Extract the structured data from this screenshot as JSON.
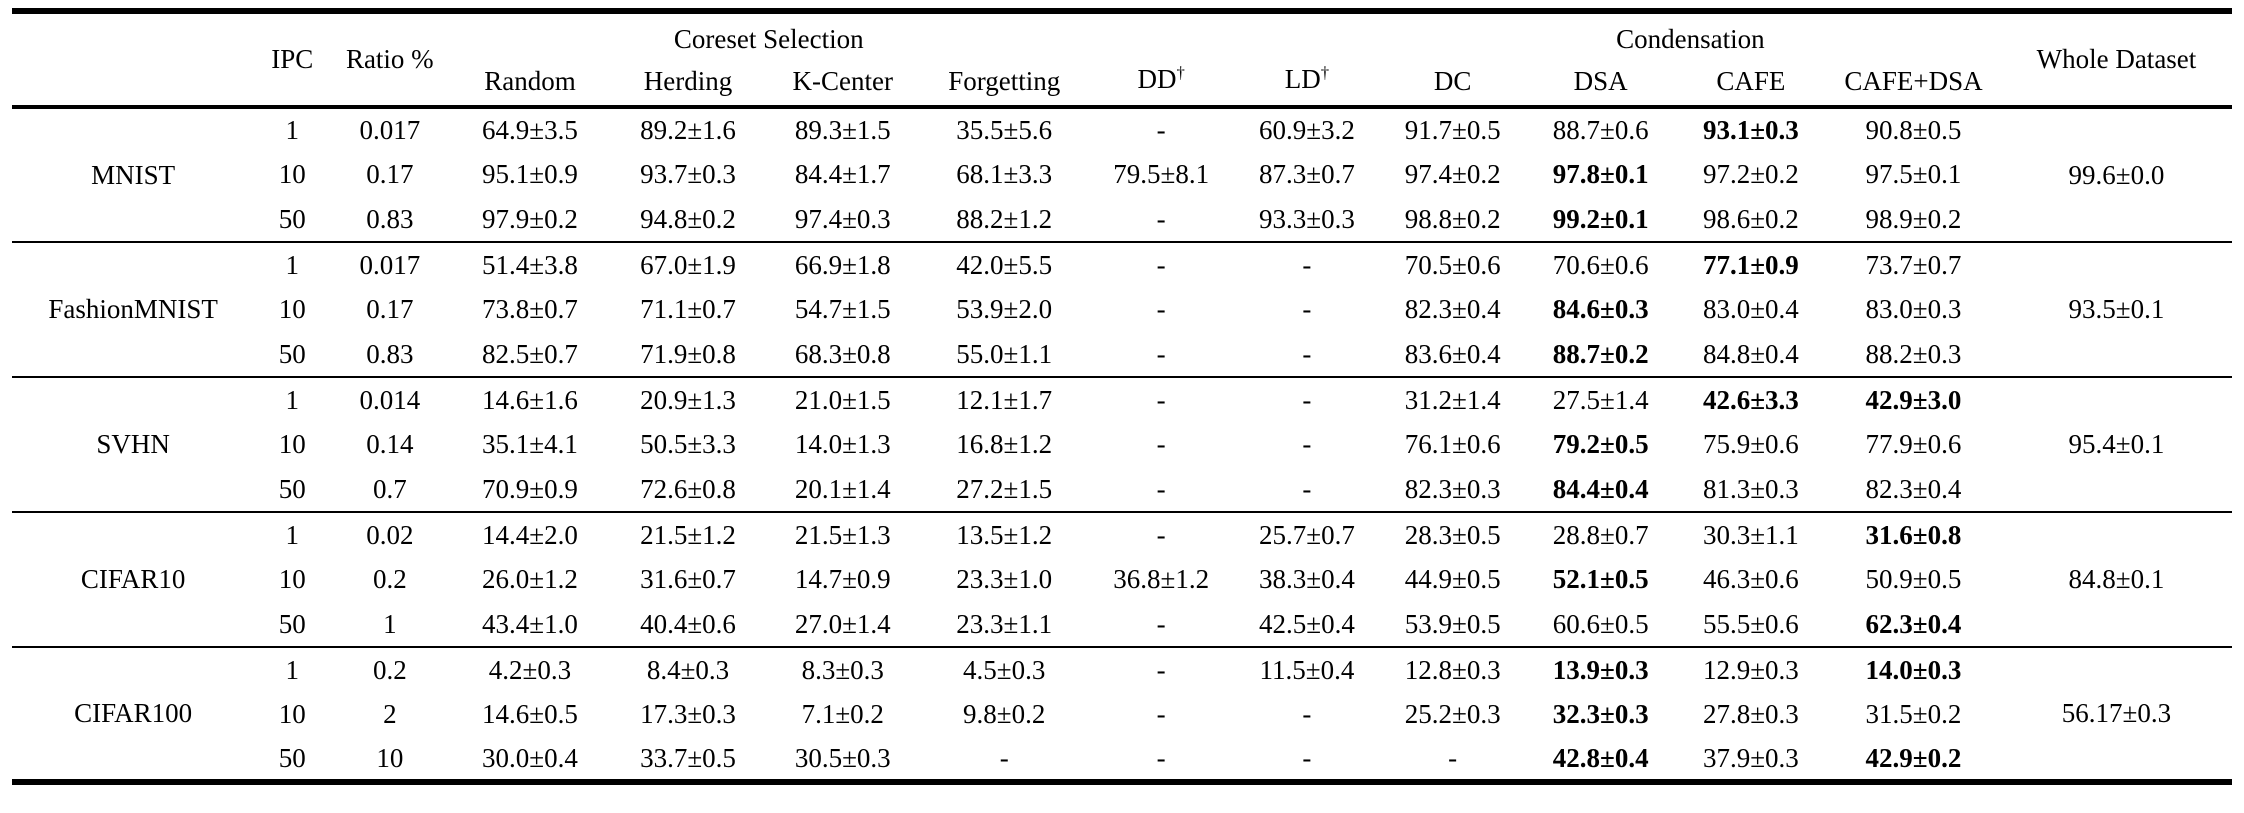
{
  "colors": {
    "text": "#000000",
    "background": "#ffffff",
    "rule": "#000000"
  },
  "header": {
    "dataset": "",
    "ipc": "IPC",
    "ratio": "Ratio %",
    "coreset_group": "Coreset Selection",
    "coreset_cols": [
      "Random",
      "Herding",
      "K-Center",
      "Forgetting"
    ],
    "dd_label": "DD",
    "ld_label": "LD",
    "dagger": "†",
    "condensation_group": "Condensation",
    "condensation_cols": [
      "DC",
      "DSA",
      "CAFE",
      "CAFE+DSA"
    ],
    "whole_label": "Whole Dataset"
  },
  "groups": [
    {
      "dataset": "MNIST",
      "whole": "99.6±0.0",
      "rows": [
        {
          "ipc": "1",
          "ratio": "0.017",
          "values": [
            "64.9±3.5",
            "89.2±1.6",
            "89.3±1.5",
            "35.5±5.6",
            "-",
            "60.9±3.2",
            "91.7±0.5",
            "88.7±0.6",
            "93.1±0.3",
            "90.8±0.5"
          ],
          "bold": [
            8
          ]
        },
        {
          "ipc": "10",
          "ratio": "0.17",
          "values": [
            "95.1±0.9",
            "93.7±0.3",
            "84.4±1.7",
            "68.1±3.3",
            "79.5±8.1",
            "87.3±0.7",
            "97.4±0.2",
            "97.8±0.1",
            "97.2±0.2",
            "97.5±0.1"
          ],
          "bold": [
            7
          ]
        },
        {
          "ipc": "50",
          "ratio": "0.83",
          "values": [
            "97.9±0.2",
            "94.8±0.2",
            "97.4±0.3",
            "88.2±1.2",
            "-",
            "93.3±0.3",
            "98.8±0.2",
            "99.2±0.1",
            "98.6±0.2",
            "98.9±0.2"
          ],
          "bold": [
            7
          ]
        }
      ]
    },
    {
      "dataset": "FashionMNIST",
      "whole": "93.5±0.1",
      "rows": [
        {
          "ipc": "1",
          "ratio": "0.017",
          "values": [
            "51.4±3.8",
            "67.0±1.9",
            "66.9±1.8",
            "42.0±5.5",
            "-",
            "-",
            "70.5±0.6",
            "70.6±0.6",
            "77.1±0.9",
            "73.7±0.7"
          ],
          "bold": [
            8
          ]
        },
        {
          "ipc": "10",
          "ratio": "0.17",
          "values": [
            "73.8±0.7",
            "71.1±0.7",
            "54.7±1.5",
            "53.9±2.0",
            "-",
            "-",
            "82.3±0.4",
            "84.6±0.3",
            "83.0±0.4",
            "83.0±0.3"
          ],
          "bold": [
            7
          ]
        },
        {
          "ipc": "50",
          "ratio": "0.83",
          "values": [
            "82.5±0.7",
            "71.9±0.8",
            "68.3±0.8",
            "55.0±1.1",
            "-",
            "-",
            "83.6±0.4",
            "88.7±0.2",
            "84.8±0.4",
            "88.2±0.3"
          ],
          "bold": [
            7
          ]
        }
      ]
    },
    {
      "dataset": "SVHN",
      "whole": "95.4±0.1",
      "rows": [
        {
          "ipc": "1",
          "ratio": "0.014",
          "values": [
            "14.6±1.6",
            "20.9±1.3",
            "21.0±1.5",
            "12.1±1.7",
            "-",
            "-",
            "31.2±1.4",
            "27.5±1.4",
            "42.6±3.3",
            "42.9±3.0"
          ],
          "bold": [
            8,
            9
          ]
        },
        {
          "ipc": "10",
          "ratio": "0.14",
          "values": [
            "35.1±4.1",
            "50.5±3.3",
            "14.0±1.3",
            "16.8±1.2",
            "-",
            "-",
            "76.1±0.6",
            "79.2±0.5",
            "75.9±0.6",
            "77.9±0.6"
          ],
          "bold": [
            7
          ]
        },
        {
          "ipc": "50",
          "ratio": "0.7",
          "values": [
            "70.9±0.9",
            "72.6±0.8",
            "20.1±1.4",
            "27.2±1.5",
            "-",
            "-",
            "82.3±0.3",
            "84.4±0.4",
            "81.3±0.3",
            "82.3±0.4"
          ],
          "bold": [
            7
          ]
        }
      ]
    },
    {
      "dataset": "CIFAR10",
      "whole": "84.8±0.1",
      "rows": [
        {
          "ipc": "1",
          "ratio": "0.02",
          "values": [
            "14.4±2.0",
            "21.5±1.2",
            "21.5±1.3",
            "13.5±1.2",
            "-",
            "25.7±0.7",
            "28.3±0.5",
            "28.8±0.7",
            "30.3±1.1",
            "31.6±0.8"
          ],
          "bold": [
            9
          ]
        },
        {
          "ipc": "10",
          "ratio": "0.2",
          "values": [
            "26.0±1.2",
            "31.6±0.7",
            "14.7±0.9",
            "23.3±1.0",
            "36.8±1.2",
            "38.3±0.4",
            "44.9±0.5",
            "52.1±0.5",
            "46.3±0.6",
            "50.9±0.5"
          ],
          "bold": [
            7
          ]
        },
        {
          "ipc": "50",
          "ratio": "1",
          "values": [
            "43.4±1.0",
            "40.4±0.6",
            "27.0±1.4",
            "23.3±1.1",
            "-",
            "42.5±0.4",
            "53.9±0.5",
            "60.6±0.5",
            "55.5±0.6",
            "62.3±0.4"
          ],
          "bold": [
            9
          ]
        }
      ]
    },
    {
      "dataset": "CIFAR100",
      "whole": "56.17±0.3",
      "rows": [
        {
          "ipc": "1",
          "ratio": "0.2",
          "values": [
            "4.2±0.3",
            "8.4±0.3",
            "8.3±0.3",
            "4.5±0.3",
            "-",
            "11.5±0.4",
            "12.8±0.3",
            "13.9±0.3",
            "12.9±0.3",
            "14.0±0.3"
          ],
          "bold": [
            7,
            9
          ]
        },
        {
          "ipc": "10",
          "ratio": "2",
          "values": [
            "14.6±0.5",
            "17.3±0.3",
            "7.1±0.2",
            "9.8±0.2",
            "-",
            "-",
            "25.2±0.3",
            "32.3±0.3",
            "27.8±0.3",
            "31.5±0.2"
          ],
          "bold": [
            7
          ]
        },
        {
          "ipc": "50",
          "ratio": "10",
          "values": [
            "30.0±0.4",
            "33.7±0.5",
            "30.5±0.3",
            "-",
            "-",
            "-",
            "-",
            "42.8±0.4",
            "37.9±0.3",
            "42.9±0.2"
          ],
          "bold": [
            7,
            9
          ]
        }
      ]
    }
  ]
}
